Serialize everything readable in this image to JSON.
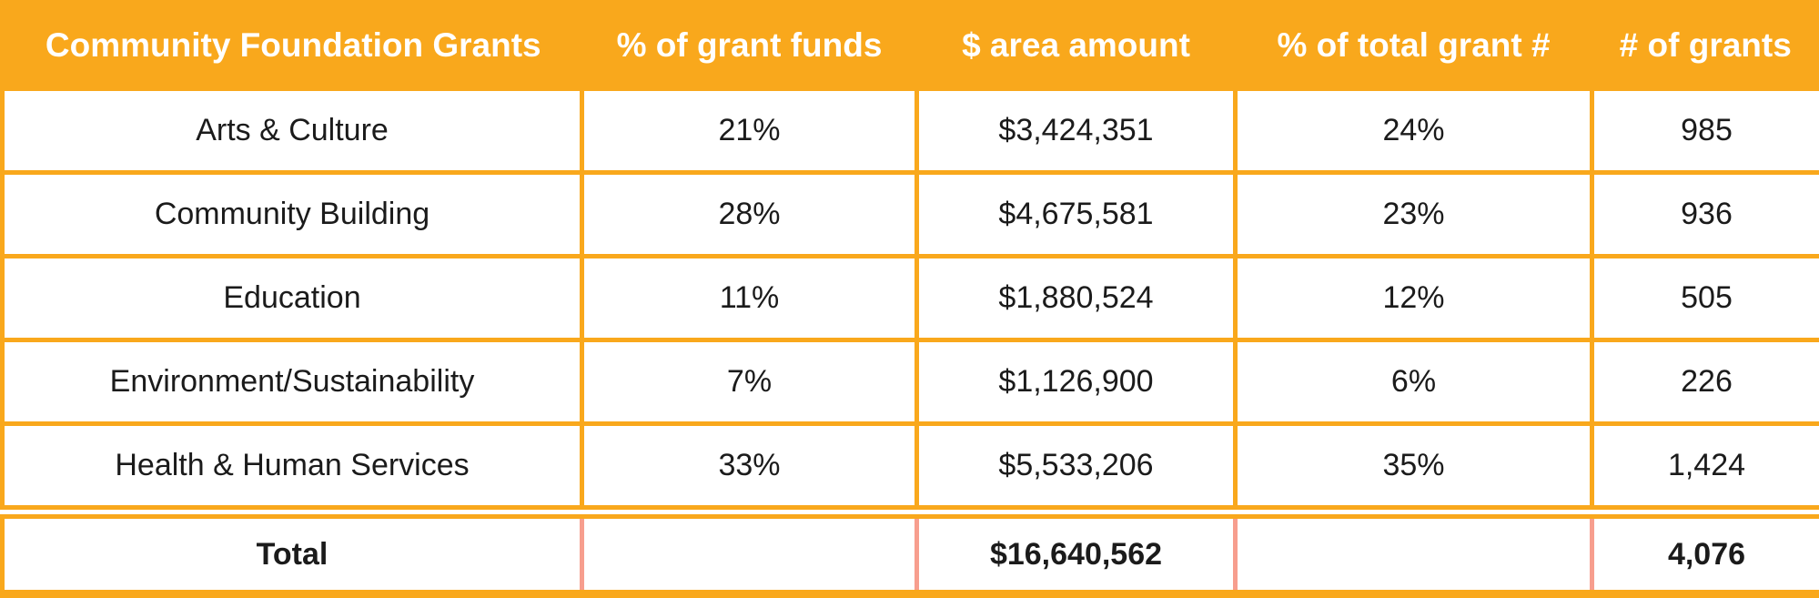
{
  "chart_data": {
    "type": "table",
    "title": "Community Foundation Grants",
    "columns": [
      "Community Foundation Grants",
      "% of grant funds",
      "$ area amount",
      "% of total grant #",
      "# of grants"
    ],
    "rows": [
      [
        "Arts & Culture",
        "21%",
        "$3,424,351",
        "24%",
        "985"
      ],
      [
        "Community Building",
        "28%",
        "$4,675,581",
        "23%",
        "936"
      ],
      [
        "Education",
        "11%",
        "$1,880,524",
        "12%",
        "505"
      ],
      [
        "Environment/Sustainability",
        "7%",
        "$1,126,900",
        "6%",
        "226"
      ],
      [
        "Health & Human Services",
        "33%",
        "$5,533,206",
        "35%",
        "1,424"
      ]
    ],
    "total": {
      "label": "Total",
      "pct_of_grant_funds": "",
      "area_amount": "$16,640,562",
      "pct_of_total_grant_count": "",
      "num_grants": "4,076"
    }
  },
  "colors": {
    "accent_orange": "#F9A81C",
    "total_divider_salmon": "#F79E8E",
    "header_text": "#FFFFFF",
    "body_text": "#1B1B1B",
    "cell_background": "#FFFFFF"
  }
}
